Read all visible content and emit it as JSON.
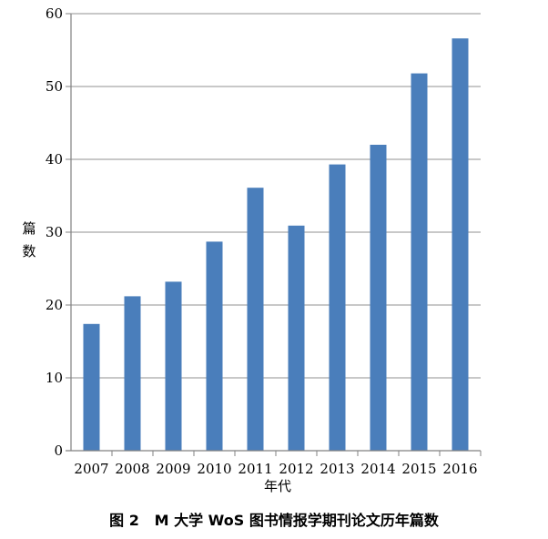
{
  "chart_data": {
    "type": "bar",
    "categories": [
      "2007",
      "2008",
      "2009",
      "2010",
      "2011",
      "2012",
      "2013",
      "2014",
      "2015",
      "2016"
    ],
    "values": [
      17.4,
      21.2,
      23.2,
      28.7,
      36.1,
      30.9,
      39.3,
      42.0,
      51.8,
      56.6
    ],
    "title": "图 2   M 大学 WoS 图书情报学期刊论文历年篇数",
    "xlabel": "年代",
    "ylabel": [
      "篇",
      "数"
    ],
    "ylim": [
      0,
      60
    ],
    "yticks": [
      0,
      10,
      20,
      30,
      40,
      50,
      60
    ],
    "grid": true,
    "legend": "none",
    "colors": {
      "bar": "#4a7ebb",
      "grid": "#a6a6a6",
      "axis": "#808080"
    }
  }
}
